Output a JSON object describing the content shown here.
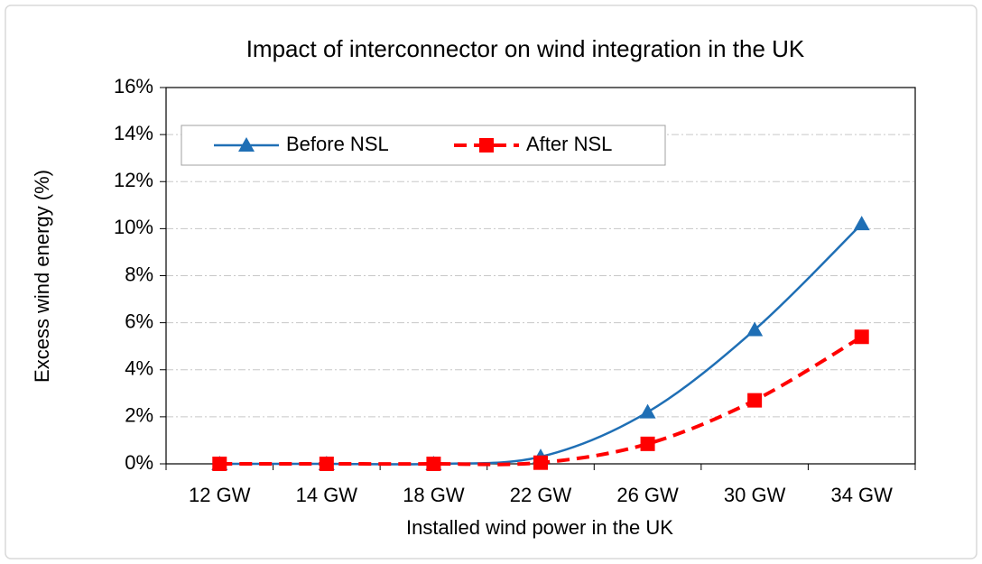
{
  "chart_data": {
    "type": "line",
    "title": "Impact of interconnector on wind integration in the UK",
    "x_label": "Installed wind power in the UK",
    "y_label": "Excess wind energy (%)",
    "categories": [
      "12  GW",
      "14 GW",
      "18 GW",
      "22 GW",
      "26 GW",
      "30 GW",
      "34 GW"
    ],
    "series": [
      {
        "name": "Before NSL",
        "color": "#1f6fb5",
        "marker": "triangle",
        "dashed": false,
        "values": [
          0,
          0,
          0,
          0.3,
          2.2,
          5.7,
          10.2
        ]
      },
      {
        "name": "After NSL",
        "color": "#ff0000",
        "marker": "square",
        "dashed": true,
        "values": [
          0,
          0,
          0,
          0.05,
          0.85,
          2.7,
          5.4
        ]
      }
    ],
    "ylim": [
      0,
      16
    ],
    "yticks": [
      {
        "value": 0,
        "label": "0%"
      },
      {
        "value": 2,
        "label": "2%"
      },
      {
        "value": 4,
        "label": "4%"
      },
      {
        "value": 6,
        "label": "6%"
      },
      {
        "value": 8,
        "label": "8%"
      },
      {
        "value": 10,
        "label": "10%"
      },
      {
        "value": 12,
        "label": "12%"
      },
      {
        "value": 14,
        "label": "14%"
      },
      {
        "value": 16,
        "label": "16%"
      }
    ],
    "grid": true,
    "legend": "upper-left"
  }
}
